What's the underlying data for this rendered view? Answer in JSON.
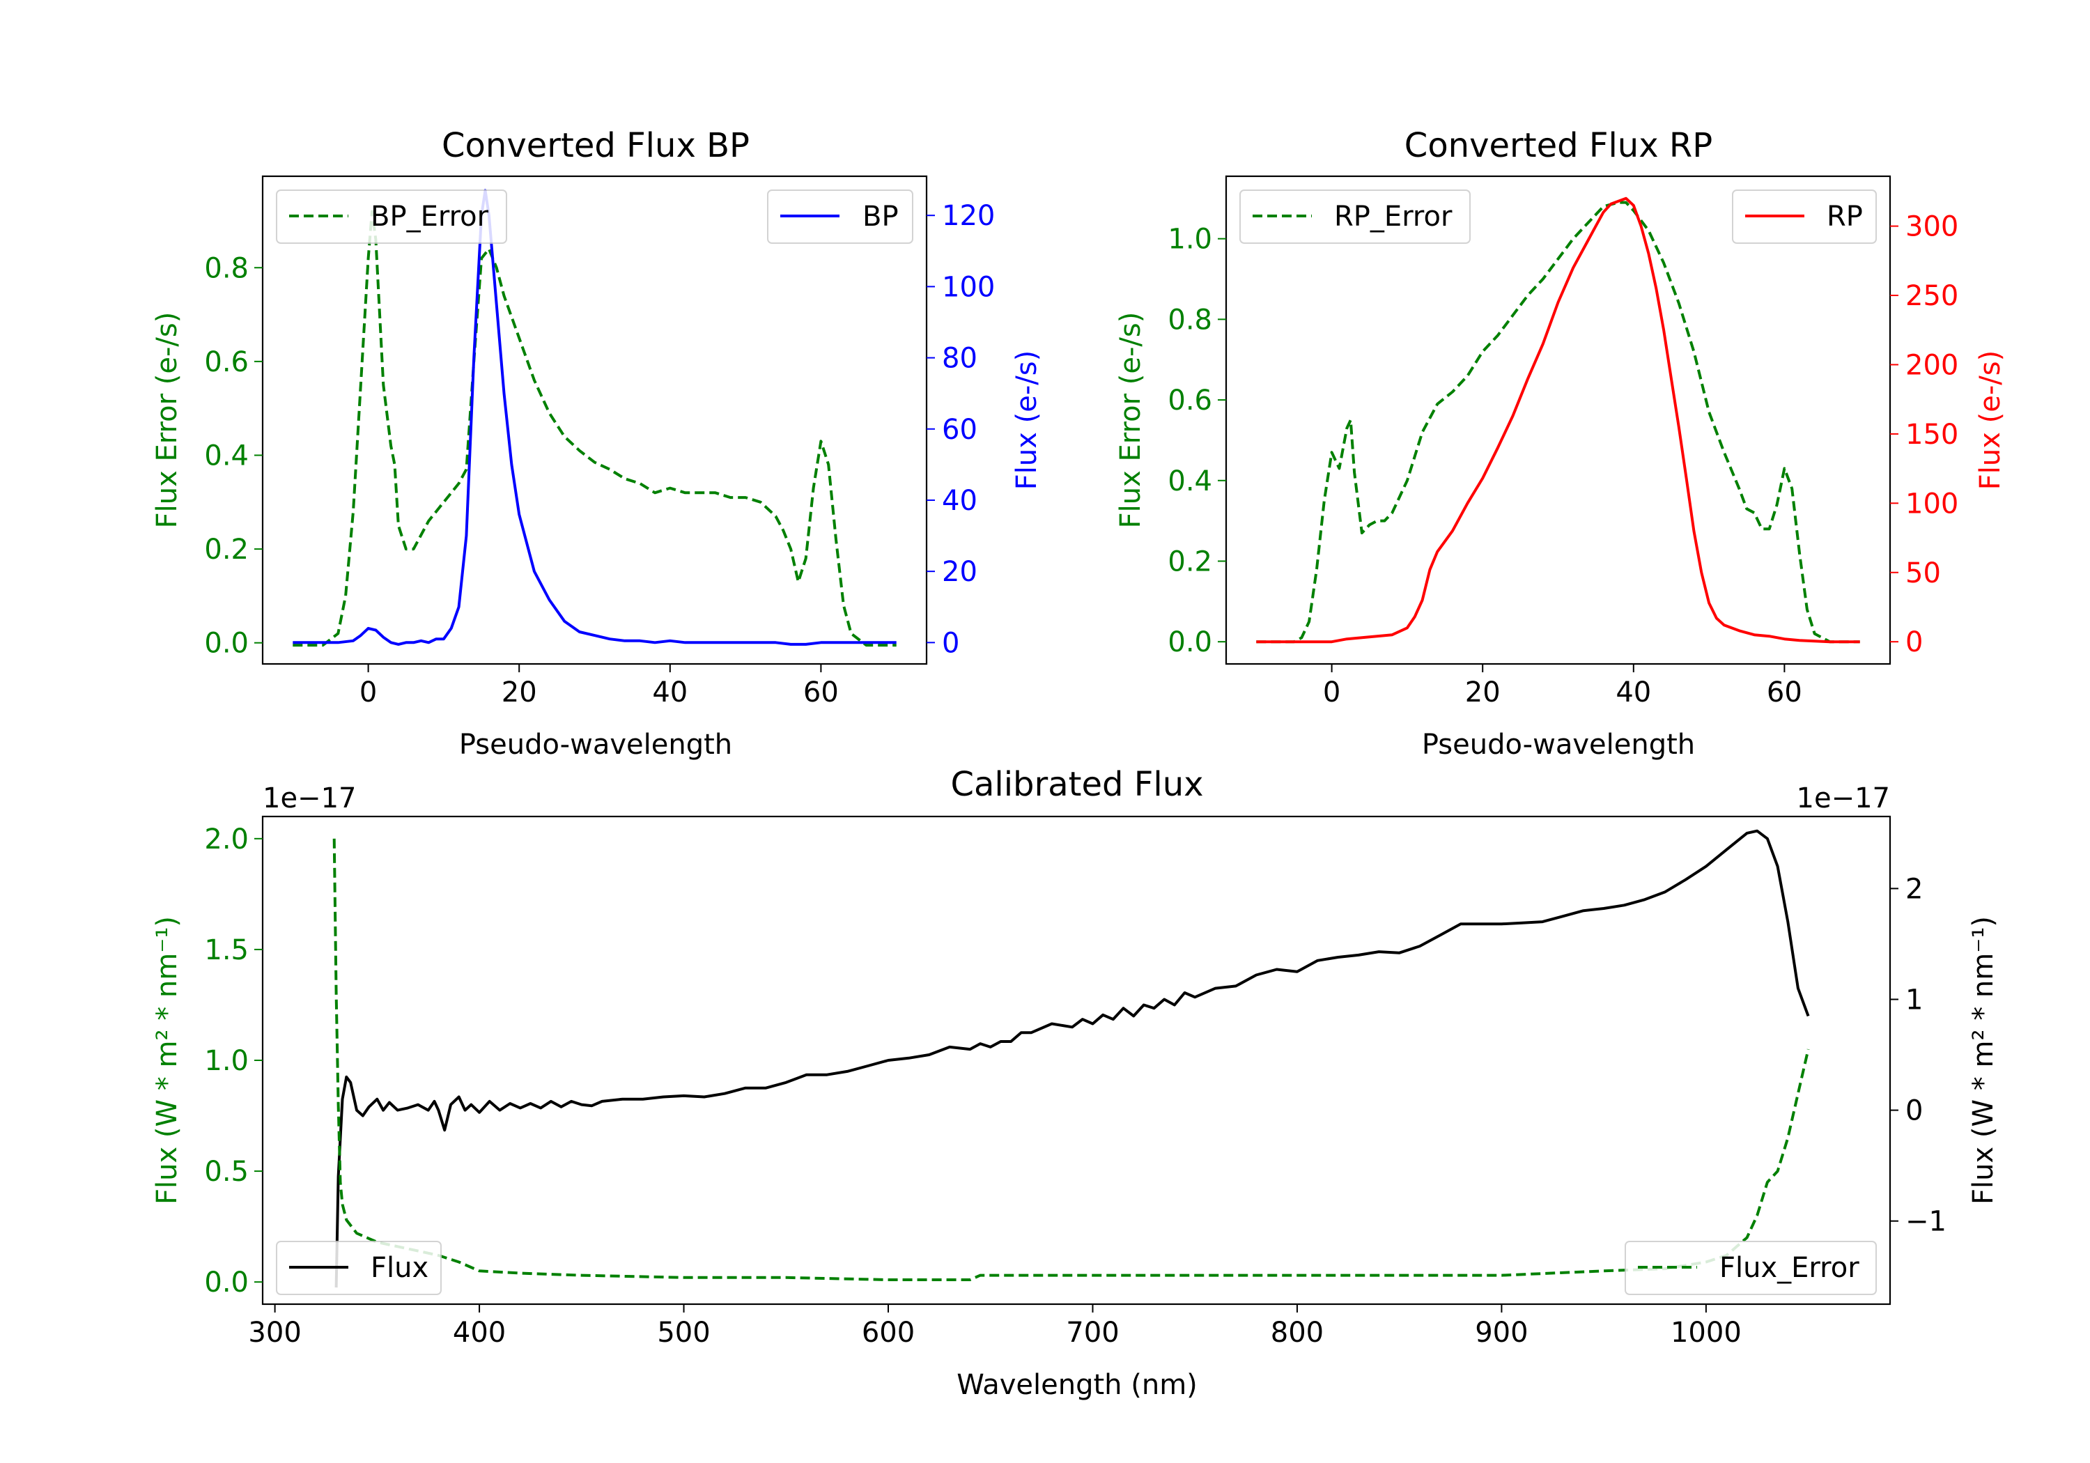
{
  "chart_data": [
    {
      "type": "line",
      "title": "Converted Flux BP",
      "xlabel": "Pseudo-wavelength",
      "ylabel_left": "Flux Error (e-/s)",
      "ylabel_right": "Flux (e-/s)",
      "xlim": [
        -14,
        74
      ],
      "ylim_left": [
        -0.045,
        0.995
      ],
      "ylim_right": [
        -6,
        131
      ],
      "x_ticks": [
        0,
        20,
        40,
        60
      ],
      "y_ticks_left": [
        0.0,
        0.2,
        0.4,
        0.6,
        0.8
      ],
      "y_ticks_right": [
        0,
        20,
        40,
        60,
        80,
        100,
        120
      ],
      "legend_left": "top-left",
      "legend_right": "top-right",
      "series": [
        {
          "name": "BP_Error",
          "axis": "left",
          "color": "#008000",
          "style": "dashed",
          "x": [
            -10,
            -6,
            -4,
            -3,
            -2,
            -1,
            0,
            0.5,
            1,
            2,
            3,
            3.5,
            4,
            5,
            6,
            7,
            8,
            10,
            12,
            13,
            14,
            15,
            16,
            17,
            18,
            20,
            22,
            24,
            26,
            28,
            30,
            32,
            34,
            36,
            38,
            40,
            42,
            44,
            46,
            48,
            50,
            52,
            54,
            55,
            56,
            57,
            58,
            59,
            60,
            61,
            62,
            63,
            64,
            66,
            70
          ],
          "y": [
            -0.005,
            -0.005,
            0.02,
            0.1,
            0.28,
            0.55,
            0.82,
            0.92,
            0.86,
            0.55,
            0.42,
            0.38,
            0.25,
            0.2,
            0.2,
            0.23,
            0.26,
            0.3,
            0.34,
            0.37,
            0.6,
            0.82,
            0.84,
            0.8,
            0.74,
            0.65,
            0.56,
            0.49,
            0.44,
            0.41,
            0.385,
            0.37,
            0.35,
            0.34,
            0.32,
            0.33,
            0.32,
            0.32,
            0.32,
            0.31,
            0.31,
            0.3,
            0.27,
            0.24,
            0.2,
            0.13,
            0.18,
            0.33,
            0.43,
            0.38,
            0.22,
            0.08,
            0.02,
            -0.005,
            -0.005
          ]
        },
        {
          "name": "BP",
          "axis": "right",
          "color": "#0000ff",
          "style": "solid",
          "x": [
            -10,
            -4,
            -2,
            -1,
            0,
            1,
            2,
            3,
            4,
            5,
            6,
            7,
            8,
            9,
            10,
            11,
            12,
            13,
            14,
            15,
            15.5,
            16,
            17,
            18,
            19,
            20,
            22,
            24,
            26,
            28,
            30,
            32,
            34,
            36,
            38,
            40,
            42,
            44,
            46,
            48,
            50,
            52,
            54,
            56,
            58,
            60,
            62,
            66,
            70
          ],
          "y": [
            0,
            0,
            0.5,
            2,
            4,
            3.5,
            1.5,
            0,
            -0.5,
            0,
            0,
            0.5,
            0,
            1,
            1,
            4,
            10,
            30,
            80,
            120,
            127,
            120,
            95,
            70,
            50,
            36,
            20,
            12,
            6,
            3,
            2,
            1,
            0.5,
            0.5,
            0,
            0.5,
            0,
            0,
            0,
            0,
            0,
            0,
            0,
            -0.5,
            -0.5,
            0,
            0,
            0,
            0
          ]
        }
      ]
    },
    {
      "type": "line",
      "title": "Converted Flux RP",
      "xlabel": "Pseudo-wavelength",
      "ylabel_left": "Flux Error (e-/s)",
      "ylabel_right": "Flux (e-/s)",
      "xlim": [
        -14,
        74
      ],
      "ylim_left": [
        -0.055,
        1.155
      ],
      "ylim_right": [
        -16,
        336
      ],
      "x_ticks": [
        0,
        20,
        40,
        60
      ],
      "y_ticks_left": [
        0.0,
        0.2,
        0.4,
        0.6,
        0.8,
        1.0
      ],
      "y_ticks_right": [
        0,
        50,
        100,
        150,
        200,
        250,
        300
      ],
      "legend_left": "top-left",
      "legend_right": "top-right",
      "series": [
        {
          "name": "RP_Error",
          "axis": "left",
          "color": "#008000",
          "style": "dashed",
          "x": [
            -10,
            -5,
            -4,
            -3,
            -2,
            -1,
            0,
            1,
            2,
            2.5,
            3,
            4,
            5,
            6,
            7,
            8,
            10,
            12,
            14,
            16,
            18,
            20,
            22,
            24,
            26,
            28,
            30,
            32,
            34,
            36,
            38,
            39,
            40,
            42,
            44,
            46,
            48,
            50,
            52,
            54,
            55,
            56,
            57,
            58,
            59,
            60,
            61,
            62,
            63,
            64,
            66,
            70
          ],
          "y": [
            0,
            0,
            0.01,
            0.05,
            0.18,
            0.35,
            0.47,
            0.43,
            0.53,
            0.55,
            0.42,
            0.27,
            0.29,
            0.3,
            0.3,
            0.32,
            0.4,
            0.52,
            0.59,
            0.62,
            0.66,
            0.72,
            0.76,
            0.81,
            0.86,
            0.9,
            0.95,
            1.0,
            1.04,
            1.08,
            1.09,
            1.09,
            1.07,
            1.02,
            0.94,
            0.84,
            0.72,
            0.57,
            0.47,
            0.38,
            0.33,
            0.32,
            0.28,
            0.28,
            0.34,
            0.43,
            0.38,
            0.22,
            0.08,
            0.02,
            0,
            0
          ]
        },
        {
          "name": "RP",
          "axis": "right",
          "color": "#ff0000",
          "style": "solid",
          "x": [
            -10,
            -2,
            0,
            2,
            4,
            6,
            8,
            10,
            11,
            12,
            13,
            14,
            16,
            18,
            20,
            22,
            24,
            26,
            28,
            30,
            32,
            34,
            35,
            36,
            37,
            38,
            39,
            40,
            41,
            42,
            43,
            44,
            45,
            46,
            47,
            48,
            49,
            50,
            51,
            52,
            54,
            56,
            58,
            60,
            62,
            66,
            70
          ],
          "y": [
            0,
            0,
            0,
            2,
            3,
            4,
            5,
            10,
            18,
            30,
            52,
            65,
            80,
            100,
            118,
            140,
            163,
            190,
            215,
            245,
            270,
            290,
            300,
            310,
            316,
            318,
            320,
            315,
            300,
            280,
            255,
            225,
            190,
            155,
            118,
            80,
            50,
            28,
            17,
            12,
            8,
            5,
            4,
            2,
            1,
            0,
            0
          ]
        }
      ]
    },
    {
      "type": "line",
      "title": "Calibrated Flux",
      "xlabel": "Wavelength (nm)",
      "ylabel_left": "Flux (W * m² * nm⁻¹)",
      "ylabel_right": "Flux (W * m² * nm⁻¹)",
      "offset_left": "1e−17",
      "offset_right": "1e−17",
      "xlim": [
        294,
        1090
      ],
      "ylim_left": [
        -0.1,
        2.1
      ],
      "ylim_right": [
        -1.75,
        2.65
      ],
      "x_ticks": [
        300,
        400,
        500,
        600,
        700,
        800,
        900,
        1000
      ],
      "y_ticks_left": [
        0.0,
        0.5,
        1.0,
        1.5,
        2.0
      ],
      "y_ticks_right": [
        -1,
        0,
        1,
        2
      ],
      "y_tick_labels_right": [
        "−1",
        "0",
        "1",
        "2"
      ],
      "legend_left": "lower-left",
      "legend_right": "lower-right",
      "series": [
        {
          "name": "Flux",
          "axis": "right",
          "color": "#000000",
          "style": "solid",
          "x": [
            330,
            331,
            333,
            335,
            337,
            340,
            343,
            346,
            350,
            353,
            356,
            360,
            365,
            370,
            375,
            378,
            380,
            383,
            386,
            390,
            393,
            396,
            400,
            405,
            410,
            415,
            420,
            425,
            430,
            435,
            440,
            445,
            450,
            455,
            460,
            470,
            480,
            490,
            500,
            510,
            520,
            530,
            540,
            550,
            560,
            570,
            580,
            590,
            600,
            610,
            620,
            630,
            640,
            645,
            650,
            655,
            660,
            665,
            670,
            680,
            690,
            695,
            700,
            705,
            710,
            715,
            720,
            725,
            730,
            735,
            740,
            745,
            750,
            760,
            770,
            780,
            790,
            800,
            810,
            820,
            830,
            840,
            850,
            860,
            870,
            880,
            890,
            900,
            910,
            920,
            930,
            940,
            950,
            960,
            970,
            980,
            990,
            1000,
            1010,
            1020,
            1025,
            1030,
            1035,
            1040,
            1045,
            1050
          ],
          "y": [
            -1.6,
            -0.6,
            0.1,
            0.3,
            0.25,
            0.0,
            -0.05,
            0.03,
            0.1,
            0.0,
            0.07,
            0.0,
            0.02,
            0.05,
            0.0,
            0.08,
            0.0,
            -0.18,
            0.05,
            0.12,
            0.0,
            0.05,
            -0.02,
            0.08,
            0.0,
            0.06,
            0.02,
            0.06,
            0.02,
            0.08,
            0.03,
            0.08,
            0.05,
            0.04,
            0.08,
            0.1,
            0.1,
            0.12,
            0.13,
            0.12,
            0.15,
            0.2,
            0.2,
            0.25,
            0.32,
            0.32,
            0.35,
            0.4,
            0.45,
            0.47,
            0.5,
            0.57,
            0.55,
            0.6,
            0.57,
            0.62,
            0.62,
            0.7,
            0.7,
            0.78,
            0.75,
            0.82,
            0.78,
            0.86,
            0.82,
            0.92,
            0.85,
            0.95,
            0.92,
            1.0,
            0.95,
            1.06,
            1.02,
            1.1,
            1.12,
            1.22,
            1.27,
            1.25,
            1.35,
            1.38,
            1.4,
            1.43,
            1.42,
            1.48,
            1.58,
            1.68,
            1.68,
            1.68,
            1.69,
            1.7,
            1.75,
            1.8,
            1.82,
            1.85,
            1.9,
            1.97,
            2.08,
            2.2,
            2.35,
            2.5,
            2.52,
            2.45,
            2.2,
            1.7,
            1.1,
            0.85
          ]
        },
        {
          "name": "Flux_Error",
          "axis": "left",
          "color": "#008000",
          "style": "dashed",
          "x": [
            329,
            330,
            331,
            332,
            333,
            335,
            340,
            350,
            360,
            370,
            380,
            390,
            400,
            420,
            450,
            500,
            550,
            600,
            640,
            645,
            650,
            700,
            800,
            900,
            950,
            980,
            1000,
            1010,
            1020,
            1025,
            1030,
            1035,
            1040,
            1045,
            1050
          ],
          "y": [
            2.0,
            1.3,
            0.8,
            0.45,
            0.35,
            0.28,
            0.22,
            0.18,
            0.16,
            0.14,
            0.12,
            0.09,
            0.05,
            0.04,
            0.03,
            0.02,
            0.02,
            0.01,
            0.01,
            0.03,
            0.03,
            0.03,
            0.03,
            0.03,
            0.05,
            0.06,
            0.09,
            0.12,
            0.2,
            0.3,
            0.45,
            0.5,
            0.65,
            0.85,
            1.05
          ]
        }
      ]
    }
  ]
}
